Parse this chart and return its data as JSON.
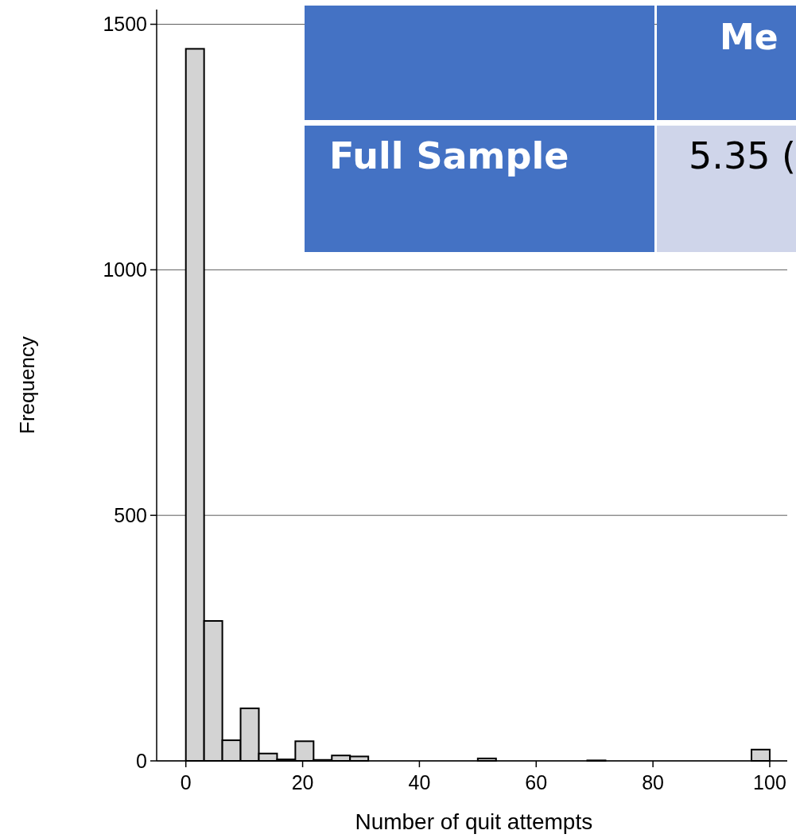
{
  "chart_data": {
    "type": "histogram",
    "xlabel": "Number of quit attempts",
    "ylabel": "Frequency",
    "bins": [
      0,
      3.125,
      6.25,
      9.375,
      12.5,
      15.625,
      18.75,
      21.875,
      25,
      28.125,
      31.25,
      34.375,
      37.5,
      40.625,
      43.75,
      46.875,
      50,
      53.125,
      56.25,
      59.375,
      62.5,
      65.625,
      68.75,
      71.875,
      75,
      78.125,
      81.25,
      84.375,
      87.5,
      90.625,
      93.75,
      96.875,
      100
    ],
    "values": [
      1450,
      285,
      42,
      107,
      15,
      3,
      40,
      2,
      11,
      9,
      0,
      0,
      0,
      0,
      0,
      0,
      5,
      0,
      0,
      0,
      0,
      0,
      1,
      0,
      0,
      0,
      0,
      0,
      0,
      0,
      0,
      23
    ],
    "color": "#d3d3d3",
    "xlim": [
      -5,
      103
    ],
    "xticks": [
      0,
      20,
      40,
      60,
      80,
      100
    ],
    "ylim": [
      0,
      1530
    ],
    "yticks": [
      0,
      500,
      1000,
      1500
    ],
    "grid": "y",
    "annotations": [
      "Me",
      "Full Sample",
      "5.35 ("
    ]
  }
}
